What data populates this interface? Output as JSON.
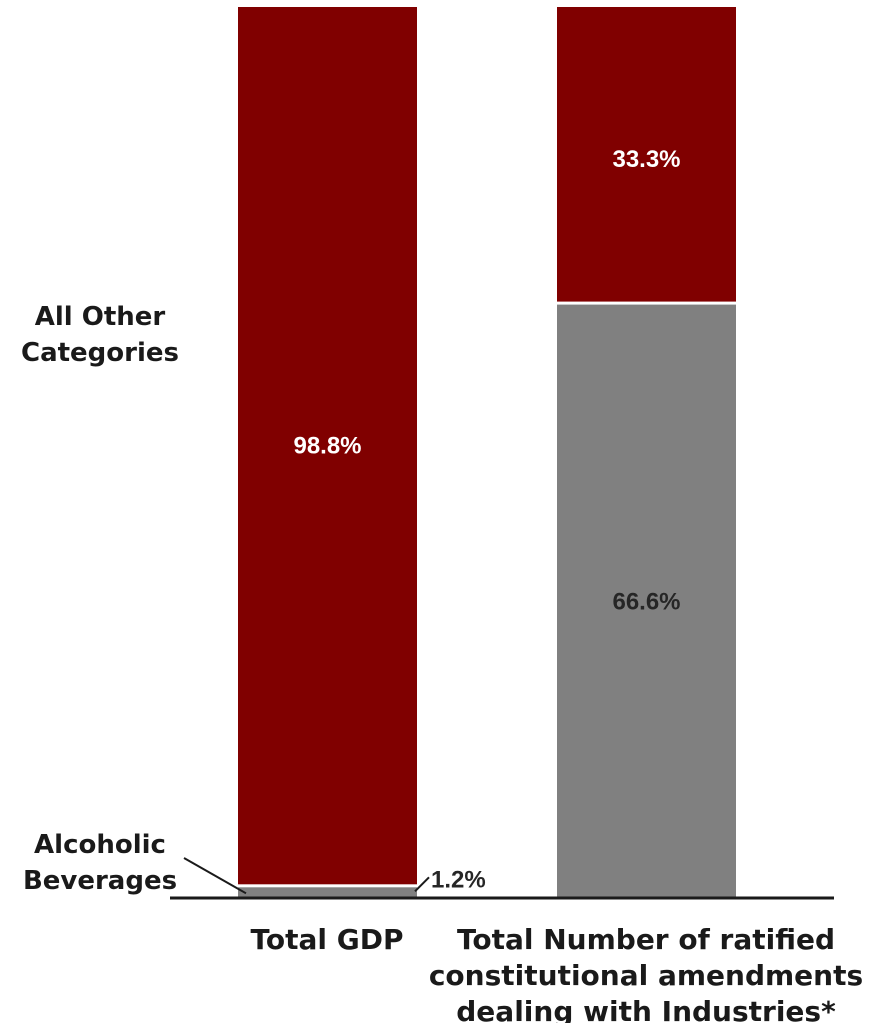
{
  "chart_data": {
    "type": "bar",
    "stacked": true,
    "categories": [
      "Total GDP",
      "Total Number of ratified constitutional amendments dealing with Industries*"
    ],
    "category_label_lines": [
      [
        "Total GDP"
      ],
      [
        "Total Number of ratified",
        "constitutional amendments",
        "dealing with Industries*"
      ]
    ],
    "series": [
      {
        "name": "Alcoholic Beverages",
        "name_lines": [
          "Alcoholic",
          "Beverages"
        ],
        "values": [
          1.2,
          66.6
        ],
        "labels": [
          "1.2%",
          "66.6%"
        ],
        "color": "#808080",
        "label_color": "#262626"
      },
      {
        "name": "All Other Categories",
        "name_lines": [
          "All Other",
          "Categories"
        ],
        "values": [
          98.8,
          33.3
        ],
        "labels": [
          "98.8%",
          "33.3%"
        ],
        "color": "#800000",
        "label_color": "#ffffff"
      }
    ],
    "ylim": [
      0,
      100
    ],
    "grid": false,
    "legend": "left, inline labels beside first bar"
  }
}
